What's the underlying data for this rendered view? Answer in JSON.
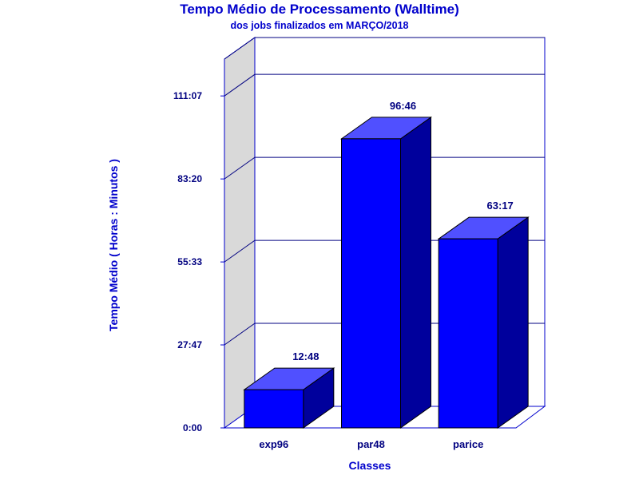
{
  "chart_data": {
    "type": "bar",
    "title": "Tempo Médio de Processamento (Walltime)",
    "subtitle": "dos jobs finalizados em MARÇO/2018",
    "xlabel": "Classes",
    "ylabel": "Tempo Médio ( Horas : Minutos )",
    "categories": [
      "exp96",
      "par48",
      "parice"
    ],
    "values": [
      768,
      5806,
      3797
    ],
    "value_labels": [
      "12:48",
      "96:46",
      "63:17"
    ],
    "y_ticks": [
      0,
      1667,
      3333,
      5000,
      6667
    ],
    "y_tick_labels": [
      "0:00",
      "27:47",
      "55:33",
      "83:20",
      "111:07"
    ],
    "ylim": [
      0,
      7407
    ],
    "y_units": "minutes",
    "grid": true,
    "style_3d": true,
    "colors": {
      "text": "#000080",
      "title": "#0000cc",
      "bar_front": "#0000ff",
      "bar_top": "#5050ff",
      "bar_side": "#00009c",
      "wall": "#d9d9d9",
      "axis": "#0000cc",
      "grid": "#000080"
    }
  }
}
